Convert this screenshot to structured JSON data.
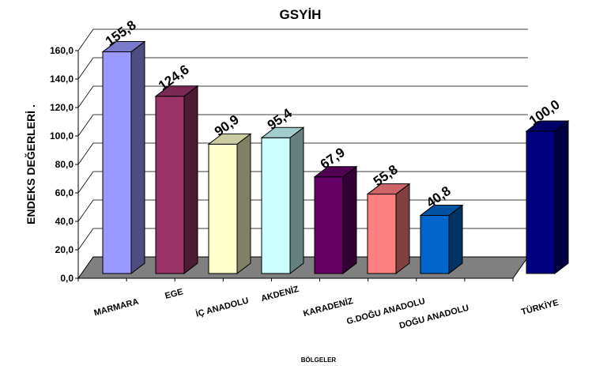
{
  "chart_data": {
    "type": "bar",
    "title": "GSYİH",
    "xlabel": "BÖLGELER",
    "ylabel": "ENDEKS DEĞERLERİ   .",
    "categories": [
      "MARMARA",
      "EGE",
      "İÇ ANADOLU",
      "AKDENİZ",
      "KARADENİZ",
      "G.DOĞU ANADOLU",
      "DOĞU ANADOLU",
      "",
      "TÜRKİYE"
    ],
    "values": [
      155.8,
      124.6,
      90.9,
      95.4,
      67.9,
      55.8,
      40.8,
      null,
      100.0
    ],
    "data_labels": [
      "155,8",
      "124,6",
      "90,9",
      "95,4",
      "67,9",
      "55,8",
      "40,8",
      "",
      "100,0"
    ],
    "colors": [
      "#9999ff",
      "#993366",
      "#ffffcc",
      "#ccffff",
      "#660066",
      "#ff8080",
      "#0066cc",
      "",
      "#000080"
    ],
    "ylim": [
      0,
      160
    ],
    "yticks": [
      "0,0",
      "20,0",
      "40,0",
      "60,0",
      "80,0",
      "100,0",
      "120,0",
      "140,0",
      "160,0"
    ],
    "grid": true,
    "floor_color": "#808080"
  }
}
